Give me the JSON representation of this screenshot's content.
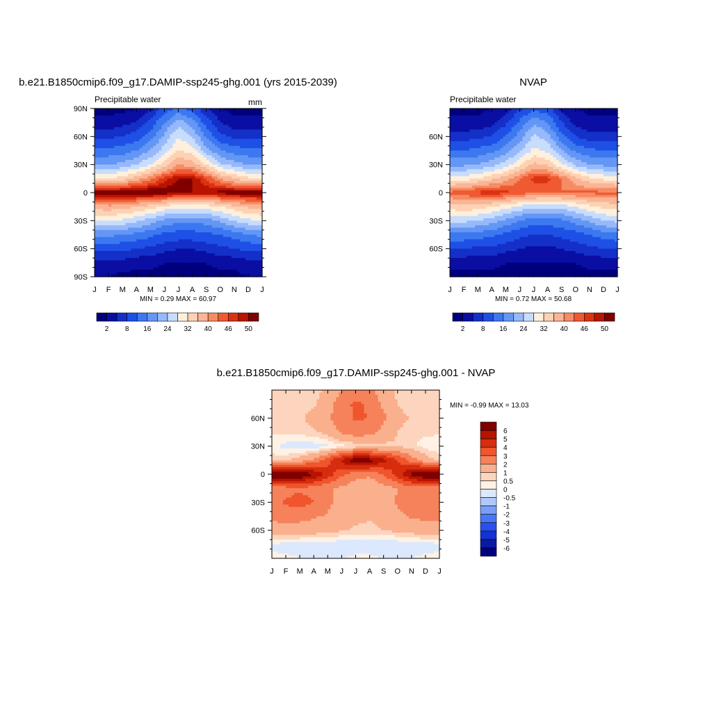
{
  "figure": {
    "chart_data": [
      {
        "type": "heatmap",
        "title": "b.e21.B1850cmip6.f09_g17.DAMIP-ssp245-ghg.001 (yrs 2015-2039)",
        "subtitle_left": "Precipitable water",
        "units": "mm",
        "stats": "MIN =   0.29 MAX =  60.97",
        "x_ticks": [
          "J",
          "F",
          "M",
          "A",
          "M",
          "J",
          "J",
          "A",
          "S",
          "O",
          "N",
          "D",
          "J"
        ],
        "y_ticks": [
          "90N",
          "60N",
          "30N",
          "0",
          "30S",
          "60S",
          "90S"
        ],
        "ylim": [
          -90,
          90
        ],
        "colorbar": {
          "orientation": "horizontal",
          "labels": [
            "2",
            "8",
            "16",
            "24",
            "32",
            "40",
            "46",
            "50"
          ],
          "levels": [
            2,
            5,
            8,
            12,
            16,
            20,
            24,
            28,
            32,
            36,
            40,
            43,
            46,
            48,
            50
          ]
        },
        "data": {
          "months": [
            "J",
            "F",
            "M",
            "A",
            "M",
            "J",
            "J",
            "A",
            "S",
            "O",
            "N",
            "D",
            "J"
          ],
          "latitudes": [
            90,
            75,
            60,
            45,
            30,
            15,
            0,
            -15,
            -30,
            -45,
            -60,
            -75,
            -90
          ],
          "values": [
            [
              1,
              1,
              1,
              2,
              4,
              9,
              13,
              10,
              5,
              2,
              1,
              1,
              1
            ],
            [
              3,
              3,
              4,
              5,
              9,
              16,
              22,
              18,
              10,
              5,
              3,
              3,
              3
            ],
            [
              7,
              7,
              8,
              10,
              14,
              21,
              28,
              24,
              15,
              9,
              7,
              7,
              7
            ],
            [
              13,
              13,
              14,
              16,
              20,
              26,
              32,
              30,
              22,
              16,
              14,
              13,
              13
            ],
            [
              20,
              20,
              21,
              24,
              28,
              34,
              40,
              38,
              32,
              25,
              22,
              20,
              20
            ],
            [
              32,
              32,
              34,
              38,
              42,
              47,
              50,
              50,
              46,
              40,
              36,
              33,
              32
            ],
            [
              52,
              52,
              53,
              53,
              53,
              52,
              51,
              50,
              50,
              51,
              52,
              52,
              52
            ],
            [
              38,
              39,
              38,
              36,
              34,
              31,
              29,
              29,
              30,
              32,
              35,
              37,
              38
            ],
            [
              28,
              28,
              27,
              25,
              22,
              19,
              17,
              17,
              18,
              21,
              24,
              27,
              28
            ],
            [
              17,
              17,
              16,
              15,
              13,
              11,
              10,
              10,
              11,
              12,
              14,
              16,
              17
            ],
            [
              9,
              9,
              9,
              8,
              7,
              6,
              5,
              5,
              6,
              7,
              8,
              9,
              9
            ],
            [
              4,
              4,
              4,
              3,
              3,
              2,
              2,
              2,
              2,
              3,
              3,
              4,
              4
            ],
            [
              2,
              2,
              1,
              1,
              1,
              1,
              1,
              1,
              1,
              1,
              1,
              2,
              2
            ]
          ]
        }
      },
      {
        "type": "heatmap",
        "title": "NVAP",
        "subtitle_left": "Precipitable water",
        "stats": "MIN =   0.72 MAX =  50.68",
        "x_ticks": [
          "J",
          "F",
          "M",
          "A",
          "M",
          "J",
          "J",
          "A",
          "S",
          "O",
          "N",
          "D",
          "J"
        ],
        "y_ticks": [
          "60N",
          "30N",
          "0",
          "30S",
          "60S"
        ],
        "ylim": [
          -90,
          90
        ],
        "colorbar": {
          "orientation": "horizontal",
          "labels": [
            "2",
            "8",
            "16",
            "24",
            "32",
            "40",
            "46",
            "50"
          ],
          "levels": [
            2,
            5,
            8,
            12,
            16,
            20,
            24,
            28,
            32,
            36,
            40,
            43,
            46,
            48,
            50
          ]
        },
        "data": {
          "months": [
            "J",
            "F",
            "M",
            "A",
            "M",
            "J",
            "J",
            "A",
            "S",
            "O",
            "N",
            "D",
            "J"
          ],
          "latitudes": [
            90,
            75,
            60,
            45,
            30,
            15,
            0,
            -15,
            -30,
            -45,
            -60,
            -75,
            -90
          ],
          "values": [
            [
              1,
              1,
              1,
              2,
              3,
              7,
              11,
              9,
              4,
              2,
              1,
              1,
              1
            ],
            [
              3,
              3,
              3,
              4,
              7,
              13,
              19,
              16,
              8,
              4,
              3,
              3,
              3
            ],
            [
              6,
              6,
              7,
              8,
              12,
              18,
              25,
              22,
              13,
              8,
              6,
              6,
              6
            ],
            [
              12,
              12,
              13,
              15,
              18,
              23,
              29,
              27,
              20,
              15,
              13,
              12,
              12
            ],
            [
              19,
              19,
              20,
              22,
              26,
              31,
              37,
              35,
              29,
              23,
              20,
              19,
              19
            ],
            [
              30,
              30,
              32,
              35,
              38,
              43,
              47,
              47,
              43,
              37,
              33,
              31,
              30
            ],
            [
              44,
              45,
              47,
              48,
              47,
              45,
              44,
              43,
              43,
              44,
              44,
              44,
              44
            ],
            [
              34,
              35,
              34,
              32,
              30,
              27,
              25,
              25,
              26,
              28,
              31,
              33,
              34
            ],
            [
              25,
              25,
              24,
              22,
              19,
              16,
              14,
              14,
              15,
              18,
              21,
              24,
              25
            ],
            [
              15,
              15,
              14,
              13,
              11,
              9,
              8,
              8,
              9,
              10,
              12,
              14,
              15
            ],
            [
              8,
              8,
              7,
              7,
              6,
              5,
              4,
              4,
              5,
              6,
              7,
              8,
              8
            ],
            [
              3,
              3,
              3,
              3,
              2,
              2,
              2,
              2,
              2,
              2,
              3,
              3,
              3
            ],
            [
              1,
              1,
              1,
              1,
              1,
              1,
              1,
              1,
              1,
              1,
              1,
              1,
              1
            ]
          ]
        }
      },
      {
        "type": "heatmap",
        "title": "b.e21.B1850cmip6.f09_g17.DAMIP-ssp245-ghg.001 - NVAP",
        "stats": "MIN =  -0.99 MAX =  13.03",
        "x_ticks": [
          "J",
          "F",
          "M",
          "A",
          "M",
          "J",
          "J",
          "A",
          "S",
          "O",
          "N",
          "D",
          "J"
        ],
        "y_ticks": [
          "60N",
          "30N",
          "0",
          "30S",
          "60S"
        ],
        "ylim": [
          -90,
          90
        ],
        "colorbar": {
          "orientation": "vertical",
          "labels": [
            "6",
            "5",
            "4",
            "3",
            "2",
            "1",
            "0.5",
            "0",
            "-0.5",
            "-1",
            "-2",
            "-3",
            "-4",
            "-5",
            "-6"
          ],
          "levels": [
            -6,
            -5,
            -4,
            -3,
            -2,
            -1,
            -0.5,
            0,
            0.5,
            1,
            2,
            3,
            4,
            5,
            6
          ]
        },
        "data": {
          "months": [
            "J",
            "F",
            "M",
            "A",
            "M",
            "J",
            "J",
            "A",
            "S",
            "O",
            "N",
            "D",
            "J"
          ],
          "latitudes": [
            90,
            75,
            60,
            45,
            30,
            15,
            0,
            -15,
            -30,
            -45,
            -60,
            -75,
            -90
          ],
          "values": [
            [
              0.8,
              0.7,
              0.6,
              0.7,
              1.2,
              2.0,
              2.4,
              2.2,
              1.4,
              0.8,
              0.7,
              0.7,
              0.8
            ],
            [
              0.6,
              0.6,
              0.7,
              0.9,
              1.5,
              2.6,
              3.2,
              2.8,
              1.8,
              1.0,
              0.7,
              0.6,
              0.6
            ],
            [
              0.7,
              0.7,
              0.9,
              1.3,
              1.9,
              2.5,
              3.1,
              3.0,
              2.2,
              1.3,
              0.9,
              0.7,
              0.7
            ],
            [
              0.6,
              0.6,
              0.7,
              0.9,
              1.3,
              2.2,
              2.6,
              2.4,
              1.7,
              1.0,
              0.7,
              0.6,
              0.6
            ],
            [
              0.1,
              -0.2,
              -0.4,
              -0.3,
              -0.1,
              0.3,
              0.5,
              0.6,
              0.8,
              0.9,
              0.6,
              0.3,
              0.1
            ],
            [
              0.8,
              0.9,
              1.4,
              2.2,
              3.6,
              5.2,
              6.8,
              6.5,
              5.4,
              4.0,
              2.5,
              1.4,
              0.8
            ],
            [
              7.5,
              7.6,
              7.2,
              6.0,
              4.6,
              3.2,
              2.4,
              2.2,
              3.0,
              4.5,
              6.4,
              7.4,
              7.5
            ],
            [
              2.4,
              2.6,
              2.8,
              2.6,
              2.2,
              1.8,
              1.4,
              1.2,
              1.6,
              2.0,
              2.4,
              2.4,
              2.4
            ],
            [
              2.8,
              3.1,
              3.5,
              3.0,
              2.2,
              1.7,
              1.4,
              1.2,
              1.5,
              2.1,
              2.7,
              2.9,
              2.8
            ],
            [
              2.2,
              2.4,
              2.3,
              2.1,
              1.9,
              1.5,
              1.2,
              1.1,
              1.3,
              1.8,
              2.1,
              2.2,
              2.2
            ],
            [
              1.6,
              1.7,
              1.6,
              1.5,
              1.3,
              1.1,
              0.9,
              0.8,
              1.0,
              1.2,
              1.4,
              1.6,
              1.6
            ],
            [
              -0.1,
              -0.2,
              -0.3,
              -0.4,
              -0.4,
              -0.4,
              -0.3,
              -0.3,
              -0.4,
              -0.4,
              -0.3,
              -0.2,
              -0.1
            ],
            [
              0.1,
              0.1,
              0.0,
              0.0,
              0.0,
              0.0,
              0.1,
              0.1,
              0.0,
              0.0,
              0.0,
              0.1,
              0.1
            ]
          ]
        }
      }
    ]
  },
  "palettes": {
    "absolute": [
      "#00007f",
      "#0a0ea2",
      "#1430c8",
      "#1e50e6",
      "#3c78f0",
      "#6496f5",
      "#96b9fa",
      "#c8dcfd",
      "#fff0dc",
      "#fdd2b4",
      "#fab496",
      "#f58c64",
      "#f05a32",
      "#dc3214",
      "#b91400",
      "#800000"
    ],
    "difference": [
      "#000080",
      "#0a1aa0",
      "#1432d2",
      "#2850f0",
      "#4678f5",
      "#7a9ef7",
      "#b0c8fa",
      "#dce8fd",
      "#fff2e4",
      "#fdd5be",
      "#fab08c",
      "#f5825a",
      "#f0552d",
      "#d72d0f",
      "#b41400",
      "#800000"
    ]
  }
}
